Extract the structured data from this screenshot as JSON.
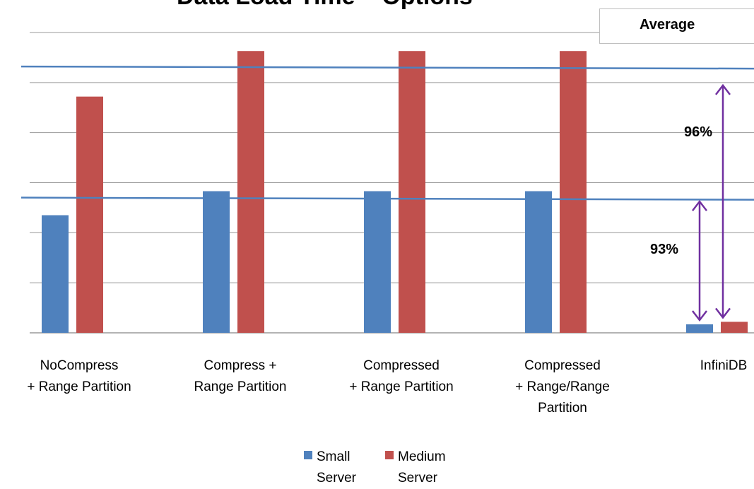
{
  "chart_data": {
    "type": "bar",
    "title": "Data Load Time – Options",
    "categories": [
      "NoCompress\n+ Range Partition",
      "Compress +\nRange Partition",
      "Compressed\n+ Range Partition",
      "Compressed\n+ Range/Range\nPartition",
      "InfiniDB"
    ],
    "series": [
      {
        "name": "Small\nServer",
        "color": "#4f81bd",
        "values": [
          2.35,
          2.83,
          2.83,
          2.83,
          0.17
        ]
      },
      {
        "name": "Medium\nServer",
        "color": "#c0504d",
        "values": [
          4.72,
          5.63,
          5.63,
          5.63,
          0.22
        ]
      }
    ],
    "ylim": [
      0,
      6
    ],
    "grid": true,
    "legend_position": "bottom",
    "average_lines": [
      {
        "series": "Small\nServer",
        "value": 2.68
      },
      {
        "series": "Medium\nServer",
        "value": 5.3
      }
    ],
    "average_label": "Average",
    "annotations": [
      {
        "text": "93%",
        "from": 0.17,
        "to": 2.68
      },
      {
        "text": "96%",
        "from": 0.22,
        "to": 5.0
      }
    ]
  },
  "colors": {
    "grid": "#9a9a9a",
    "average_line": "#4f81bd",
    "arrow": "#7030a0"
  }
}
